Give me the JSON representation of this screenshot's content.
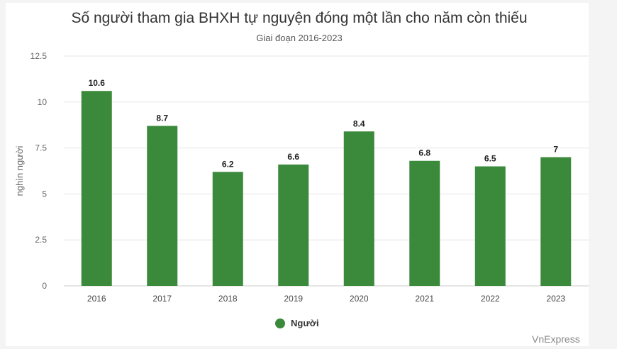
{
  "chart_data": {
    "type": "bar",
    "title": "Số người tham gia BHXH tự nguyện đóng một lần cho năm còn thiếu",
    "subtitle": "Giai đoạn 2016-2023",
    "ylabel": "nghìn người",
    "categories": [
      "2016",
      "2017",
      "2018",
      "2019",
      "2020",
      "2021",
      "2022",
      "2023"
    ],
    "series": [
      {
        "name": "Người",
        "values": [
          10.6,
          8.7,
          6.2,
          6.6,
          8.4,
          6.8,
          6.5,
          7
        ],
        "labels": [
          "10.6",
          "8.7",
          "6.2",
          "6.6",
          "8.4",
          "6.8",
          "6.5",
          "7"
        ]
      }
    ],
    "ylim": [
      0,
      12.5
    ],
    "yticks": [
      "0",
      "2.5",
      "5",
      "7.5",
      "10",
      "12.5"
    ],
    "grid": true,
    "legend_position": "bottom-center",
    "bar_color": "#3b8a3b"
  },
  "credit": "VnExpress"
}
